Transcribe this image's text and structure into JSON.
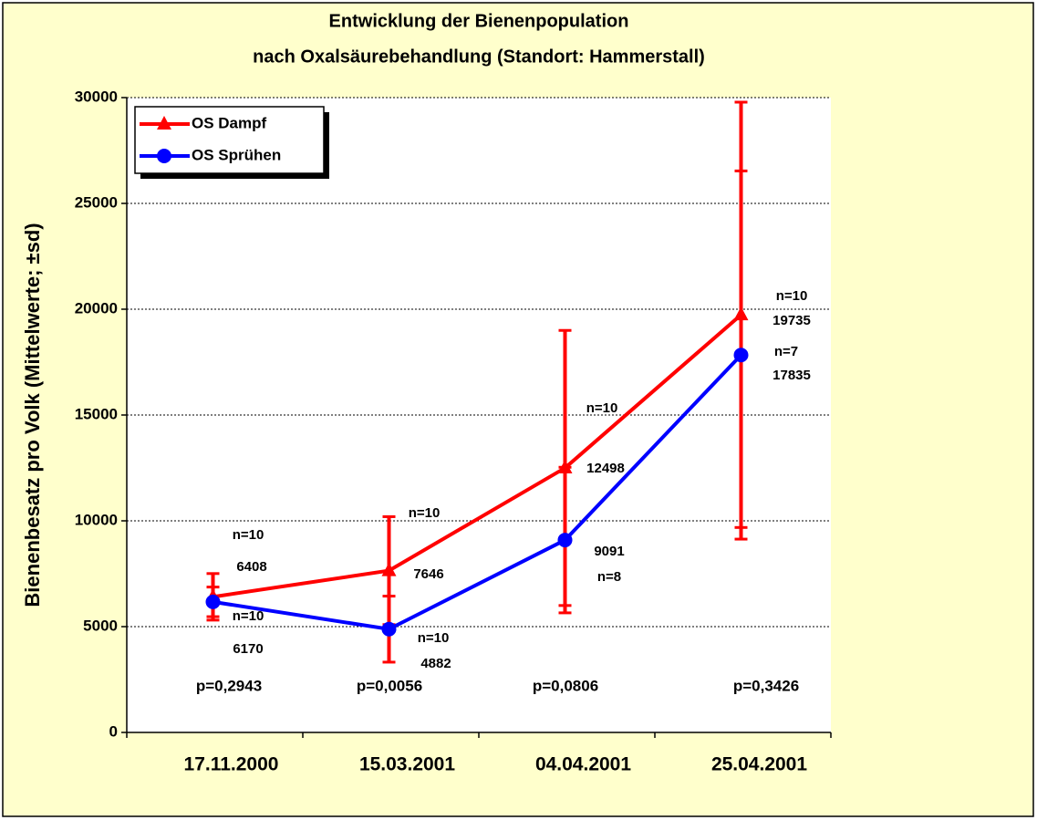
{
  "chart_data": {
    "type": "line",
    "title": [
      "Entwicklung der Bienenpopulation",
      "nach Oxalsäurebehandlung (Standort: Hammerstall)"
    ],
    "ylabel": "Bienenbesatz pro Volk (Mittelwerte; ±sd)",
    "categories": [
      "17.11.2000",
      "15.03.2001",
      "04.04.2001",
      "25.04.2001"
    ],
    "ylim": [
      0,
      30000
    ],
    "yticks": [
      0,
      5000,
      10000,
      15000,
      20000,
      25000,
      30000
    ],
    "grid": true,
    "legend": "top-left",
    "error_color": "#ff0000",
    "series": [
      {
        "name": "OS Dampf",
        "color": "#ff0000",
        "marker": "triangle",
        "values": [
          6408,
          7646,
          12498,
          19735
        ],
        "errors": [
          1100,
          2550,
          6500,
          10050
        ],
        "n_labels": [
          "n=10",
          "n=10",
          "n=10",
          "n=10"
        ]
      },
      {
        "name": "OS Sprühen",
        "color": "#0000ff",
        "marker": "circle",
        "values": [
          6170,
          4882,
          9091,
          17835
        ],
        "errors": [
          700,
          1560,
          3440,
          8700
        ],
        "n_labels": [
          "n=10",
          "n=10",
          "n=8",
          "n=7"
        ]
      }
    ],
    "p_values": [
      "p=0,2943",
      "p=0,0056",
      "p=0,0806",
      "p=0,3426"
    ]
  }
}
